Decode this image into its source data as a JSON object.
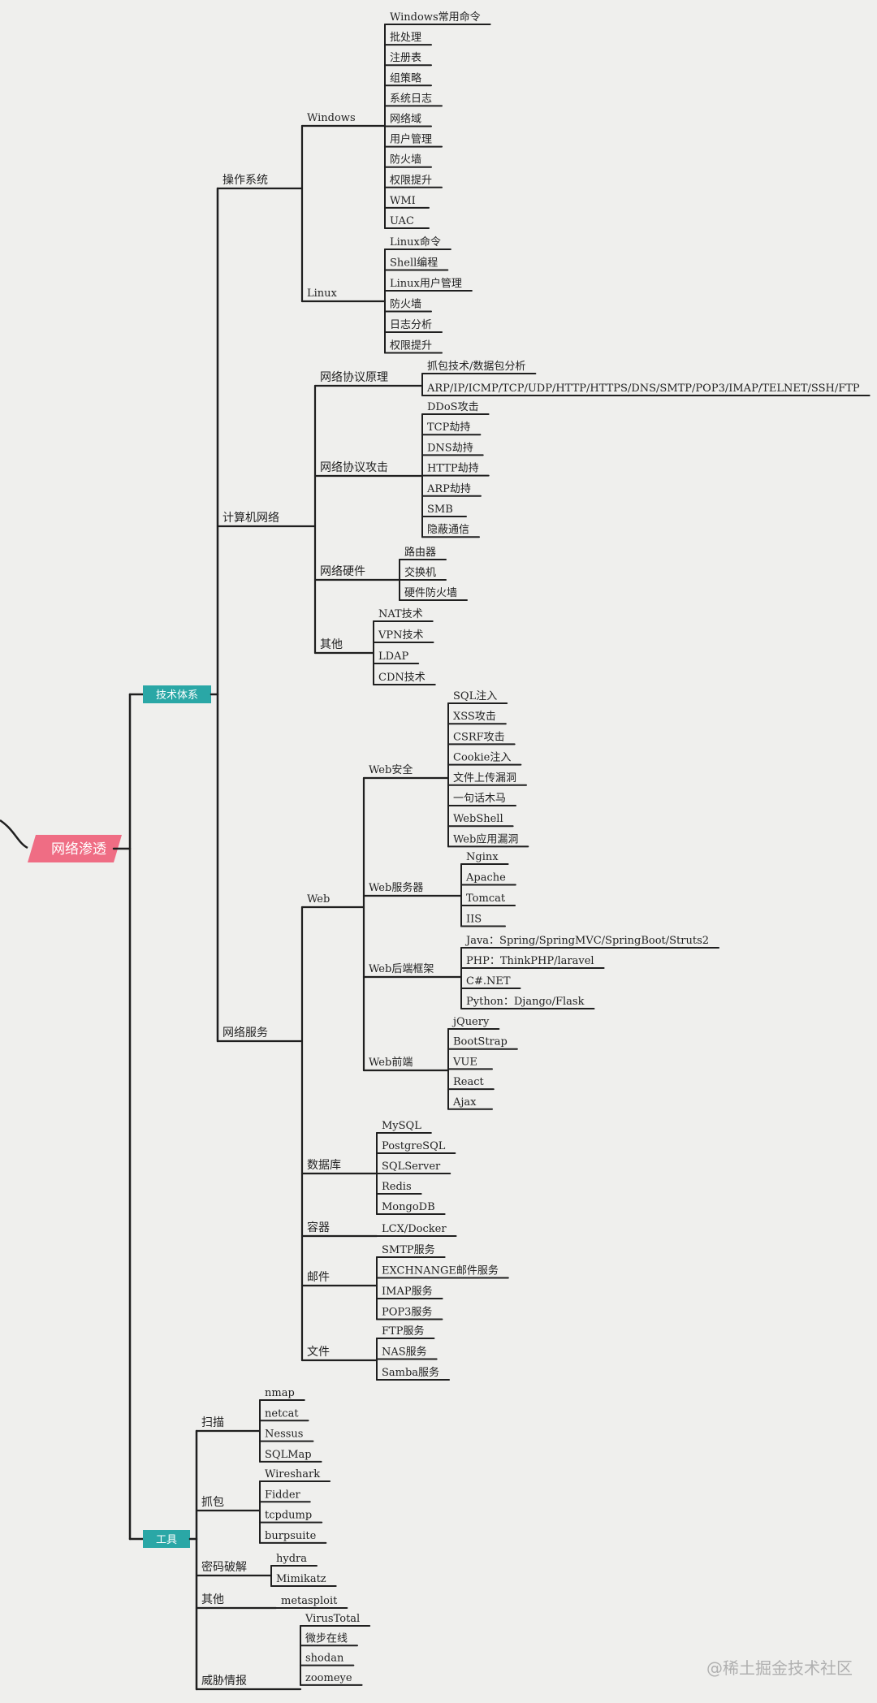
{
  "root": {
    "label": "网络渗透",
    "children": [
      {
        "label": "技术体系",
        "children": [
          {
            "label": "操作系统",
            "children": [
              {
                "label": "Windows",
                "children": [
                  "Windows常用命令",
                  "批处理",
                  "注册表",
                  "组策略",
                  "系统日志",
                  "网络域",
                  "用户管理",
                  "防火墙",
                  "权限提升",
                  "WMI",
                  "UAC"
                ]
              },
              {
                "label": "Linux",
                "children": [
                  "Linux命令",
                  "Shell编程",
                  "Linux用户管理",
                  "防火墙",
                  "日志分析",
                  "权限提升"
                ]
              }
            ]
          },
          {
            "label": "计算机网络",
            "children": [
              {
                "label": "网络协议原理",
                "children": [
                  "抓包技术/数据包分析",
                  "ARP/IP/ICMP/TCP/UDP/HTTP/HTTPS/DNS/SMTP/POP3/IMAP/TELNET/SSH/FTP"
                ]
              },
              {
                "label": "网络协议攻击",
                "children": [
                  "DDoS攻击",
                  "TCP劫持",
                  "DNS劫持",
                  "HTTP劫持",
                  "ARP劫持",
                  "SMB",
                  "隐蔽通信"
                ]
              },
              {
                "label": "网络硬件",
                "children": [
                  "路由器",
                  "交换机",
                  "硬件防火墙"
                ]
              },
              {
                "label": "其他",
                "children": [
                  "NAT技术",
                  "VPN技术",
                  "LDAP",
                  "CDN技术"
                ]
              }
            ]
          },
          {
            "label": "网络服务",
            "children": [
              {
                "label": "Web",
                "children": [
                  {
                    "label": "Web安全",
                    "children": [
                      "SQL注入",
                      "XSS攻击",
                      "CSRF攻击",
                      "Cookie注入",
                      "文件上传漏洞",
                      "一句话木马",
                      "WebShell",
                      "Web应用漏洞"
                    ]
                  },
                  {
                    "label": "Web服务器",
                    "children": [
                      "Nginx",
                      "Apache",
                      "Tomcat",
                      "IIS"
                    ]
                  },
                  {
                    "label": "Web后端框架",
                    "children": [
                      "Java：Spring/SpringMVC/SpringBoot/Struts2",
                      "PHP：ThinkPHP/laravel",
                      "C#.NET",
                      "Python：Django/Flask"
                    ]
                  },
                  {
                    "label": "Web前端",
                    "children": [
                      "jQuery",
                      "BootStrap",
                      "VUE",
                      "React",
                      "Ajax"
                    ]
                  }
                ]
              },
              {
                "label": "数据库",
                "children": [
                  "MySQL",
                  "PostgreSQL",
                  "SQLServer",
                  "Redis",
                  "MongoDB"
                ]
              },
              {
                "label": "容器",
                "children": [
                  "LCX/Docker"
                ]
              },
              {
                "label": "邮件",
                "children": [
                  "SMTP服务",
                  "EXCHNANGE邮件服务",
                  "IMAP服务",
                  "POP3服务"
                ]
              },
              {
                "label": "文件",
                "children": [
                  "FTP服务",
                  "NAS服务",
                  "Samba服务"
                ]
              }
            ]
          }
        ]
      },
      {
        "label": "工具",
        "children": [
          {
            "label": "扫描",
            "children": [
              "nmap",
              "netcat",
              "Nessus",
              "SQLMap"
            ]
          },
          {
            "label": "抓包",
            "children": [
              "Wireshark",
              "Fidder",
              "tcpdump",
              "burpsuite"
            ]
          },
          {
            "label": "密码破解",
            "children": [
              "hydra",
              "Mimikatz"
            ]
          },
          {
            "label": "其他",
            "children": [
              "metasploit"
            ]
          },
          {
            "label": "威胁情报",
            "children": [
              "VirusTotal",
              "微步在线",
              "shodan",
              "zoomeye"
            ]
          }
        ]
      }
    ]
  },
  "watermark": "@稀土掘金技术社区",
  "colors": {
    "background": "#efefed",
    "line": "#1f1f1f",
    "root_fill": "#ef6d84",
    "category_fill": "#2aa7a6"
  }
}
